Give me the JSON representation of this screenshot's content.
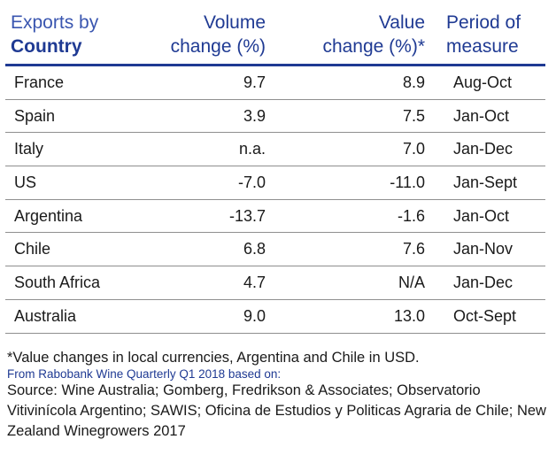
{
  "table": {
    "headers": {
      "col1_line1": "Exports by",
      "col1_line2": "Country",
      "col2_line1": "Volume",
      "col2_line2": "change (%)",
      "col3_line1": "Value",
      "col3_line2": "change (%)*",
      "col4_line1": "Period of",
      "col4_line2": "measure"
    },
    "rows": [
      {
        "country": "France",
        "volume": "9.7",
        "value": "8.9",
        "period": "Aug-Oct"
      },
      {
        "country": "Spain",
        "volume": "3.9",
        "value": "7.5",
        "period": "Jan-Oct"
      },
      {
        "country": "Italy",
        "volume": "n.a.",
        "value": "7.0",
        "period": "Jan-Dec"
      },
      {
        "country": "US",
        "volume": "-7.0",
        "value": "-11.0",
        "period": "Jan-Sept"
      },
      {
        "country": "Argentina",
        "volume": "-13.7",
        "value": "-1.6",
        "period": "Jan-Oct"
      },
      {
        "country": "Chile",
        "volume": "6.8",
        "value": "7.6",
        "period": "Jan-Nov"
      },
      {
        "country": "South Africa",
        "volume": "4.7",
        "value": "N/A",
        "period": "Jan-Dec"
      },
      {
        "country": "Australia",
        "volume": "9.0",
        "value": "13.0",
        "period": "Oct-Sept"
      }
    ]
  },
  "notes": {
    "currency_note": "*Value changes in local currencies, Argentina and Chile in USD.",
    "attribution": "From Rabobank Wine Quarterly Q1 2018 based on:",
    "sources": "Source: Wine Australia; Gomberg, Fredrikson & Associates; Observatorio Vitivinícola Argentino; SAWIS; Oficina de Estudios y Politicas Agraria de Chile; New Zealand Winegrowers 2017"
  },
  "colors": {
    "header_text": "#1f3a93",
    "header_rule": "#1f3a93",
    "row_rule": "#8f8f8f"
  }
}
